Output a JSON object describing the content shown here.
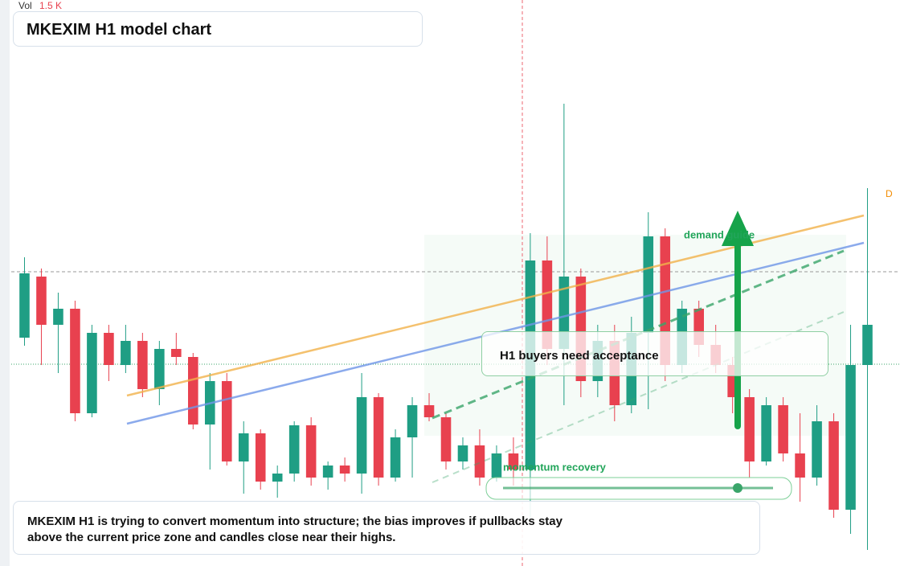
{
  "chart_data": {
    "type": "candlestick",
    "title": "MKEXIM H1 model chart",
    "volume_label": "Vol",
    "volume_value": "1.5 K",
    "annotations": {
      "zone": "H1 buyers need acceptance",
      "guide": "demand guide",
      "momentum": "momentum recovery",
      "marker": "D",
      "note": "MKEXIM H1 is trying to convert momentum into structure; the bias improves if pullbacks stay above the current price zone and candles close near their highs."
    },
    "up_color": "#1f9e84",
    "down_color": "#e8414f",
    "ylim": [
      0,
      704
    ],
    "open": [
      284,
      360,
      300,
      320,
      190,
      290,
      250,
      280,
      220,
      270,
      260,
      176,
      230,
      130,
      165,
      105,
      115,
      175,
      110,
      125,
      115,
      210,
      110,
      160,
      200,
      185,
      130,
      150,
      110,
      140,
      120,
      380,
      270,
      360,
      230,
      280,
      200,
      290,
      410,
      250,
      320,
      275,
      250,
      210,
      130,
      200,
      140,
      110,
      180,
      70,
      250
    ],
    "high": [
      384,
      370,
      340,
      330,
      300,
      300,
      300,
      290,
      280,
      290,
      265,
      240,
      240,
      180,
      170,
      125,
      180,
      185,
      130,
      135,
      240,
      215,
      170,
      210,
      215,
      190,
      160,
      170,
      150,
      160,
      414,
      410,
      575,
      370,
      300,
      300,
      310,
      440,
      420,
      330,
      330,
      300,
      260,
      220,
      210,
      210,
      190,
      200,
      190,
      300,
      470
    ],
    "low": [
      274,
      250,
      240,
      180,
      185,
      230,
      240,
      210,
      200,
      250,
      170,
      120,
      125,
      90,
      95,
      85,
      105,
      100,
      95,
      105,
      90,
      100,
      105,
      110,
      180,
      120,
      120,
      100,
      105,
      100,
      60,
      250,
      200,
      210,
      210,
      180,
      190,
      195,
      230,
      240,
      260,
      240,
      190,
      110,
      125,
      130,
      80,
      100,
      60,
      40,
      20
    ],
    "close": [
      364,
      300,
      320,
      190,
      290,
      250,
      280,
      220,
      270,
      260,
      176,
      230,
      130,
      165,
      105,
      115,
      175,
      110,
      125,
      115,
      210,
      110,
      160,
      200,
      185,
      130,
      150,
      110,
      140,
      120,
      380,
      270,
      360,
      230,
      280,
      200,
      290,
      410,
      250,
      320,
      275,
      250,
      210,
      130,
      200,
      140,
      110,
      180,
      70,
      250,
      300
    ]
  }
}
